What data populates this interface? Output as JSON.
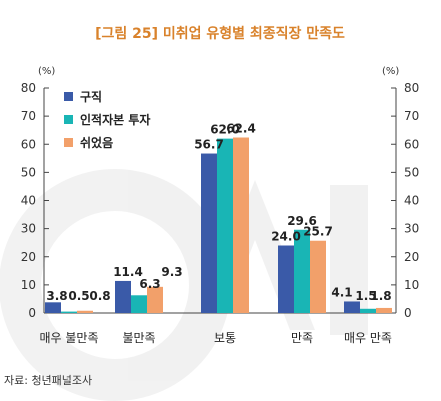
{
  "chart_data": {
    "type": "bar",
    "title": "[그림 25] 미취업 유형별 최종직장 만족도",
    "unit_left": "(%)",
    "unit_right": "(%)",
    "categories": [
      "매우 불만족",
      "불만족",
      "보통",
      "만족",
      "매우 만족"
    ],
    "series": [
      {
        "name": "구직",
        "color": "#3a5aa8",
        "values": [
          3.8,
          11.4,
          56.7,
          24.0,
          4.1
        ]
      },
      {
        "name": "인적자본 투자",
        "color": "#19b5b5",
        "values": [
          0.5,
          6.3,
          62.0,
          29.6,
          1.5
        ]
      },
      {
        "name": "쉬었음",
        "color": "#f2a06a",
        "values": [
          0.8,
          9.3,
          62.4,
          25.7,
          1.8
        ]
      }
    ],
    "value_labels": [
      [
        "3.8",
        "11.4",
        "56.7",
        "24.0",
        "4.1"
      ],
      [
        "0.5",
        "6.3",
        "62.0",
        "29.6",
        "1.5"
      ],
      [
        "0.8",
        "9.3",
        "62.4",
        "25.7",
        "1.8"
      ]
    ],
    "ylim": [
      0,
      80
    ],
    "yticks": [
      "0",
      "10",
      "20",
      "30",
      "40",
      "50",
      "60",
      "70",
      "80"
    ],
    "legend": "top-left",
    "grid": false,
    "source": "자료: 청년패널조사"
  }
}
